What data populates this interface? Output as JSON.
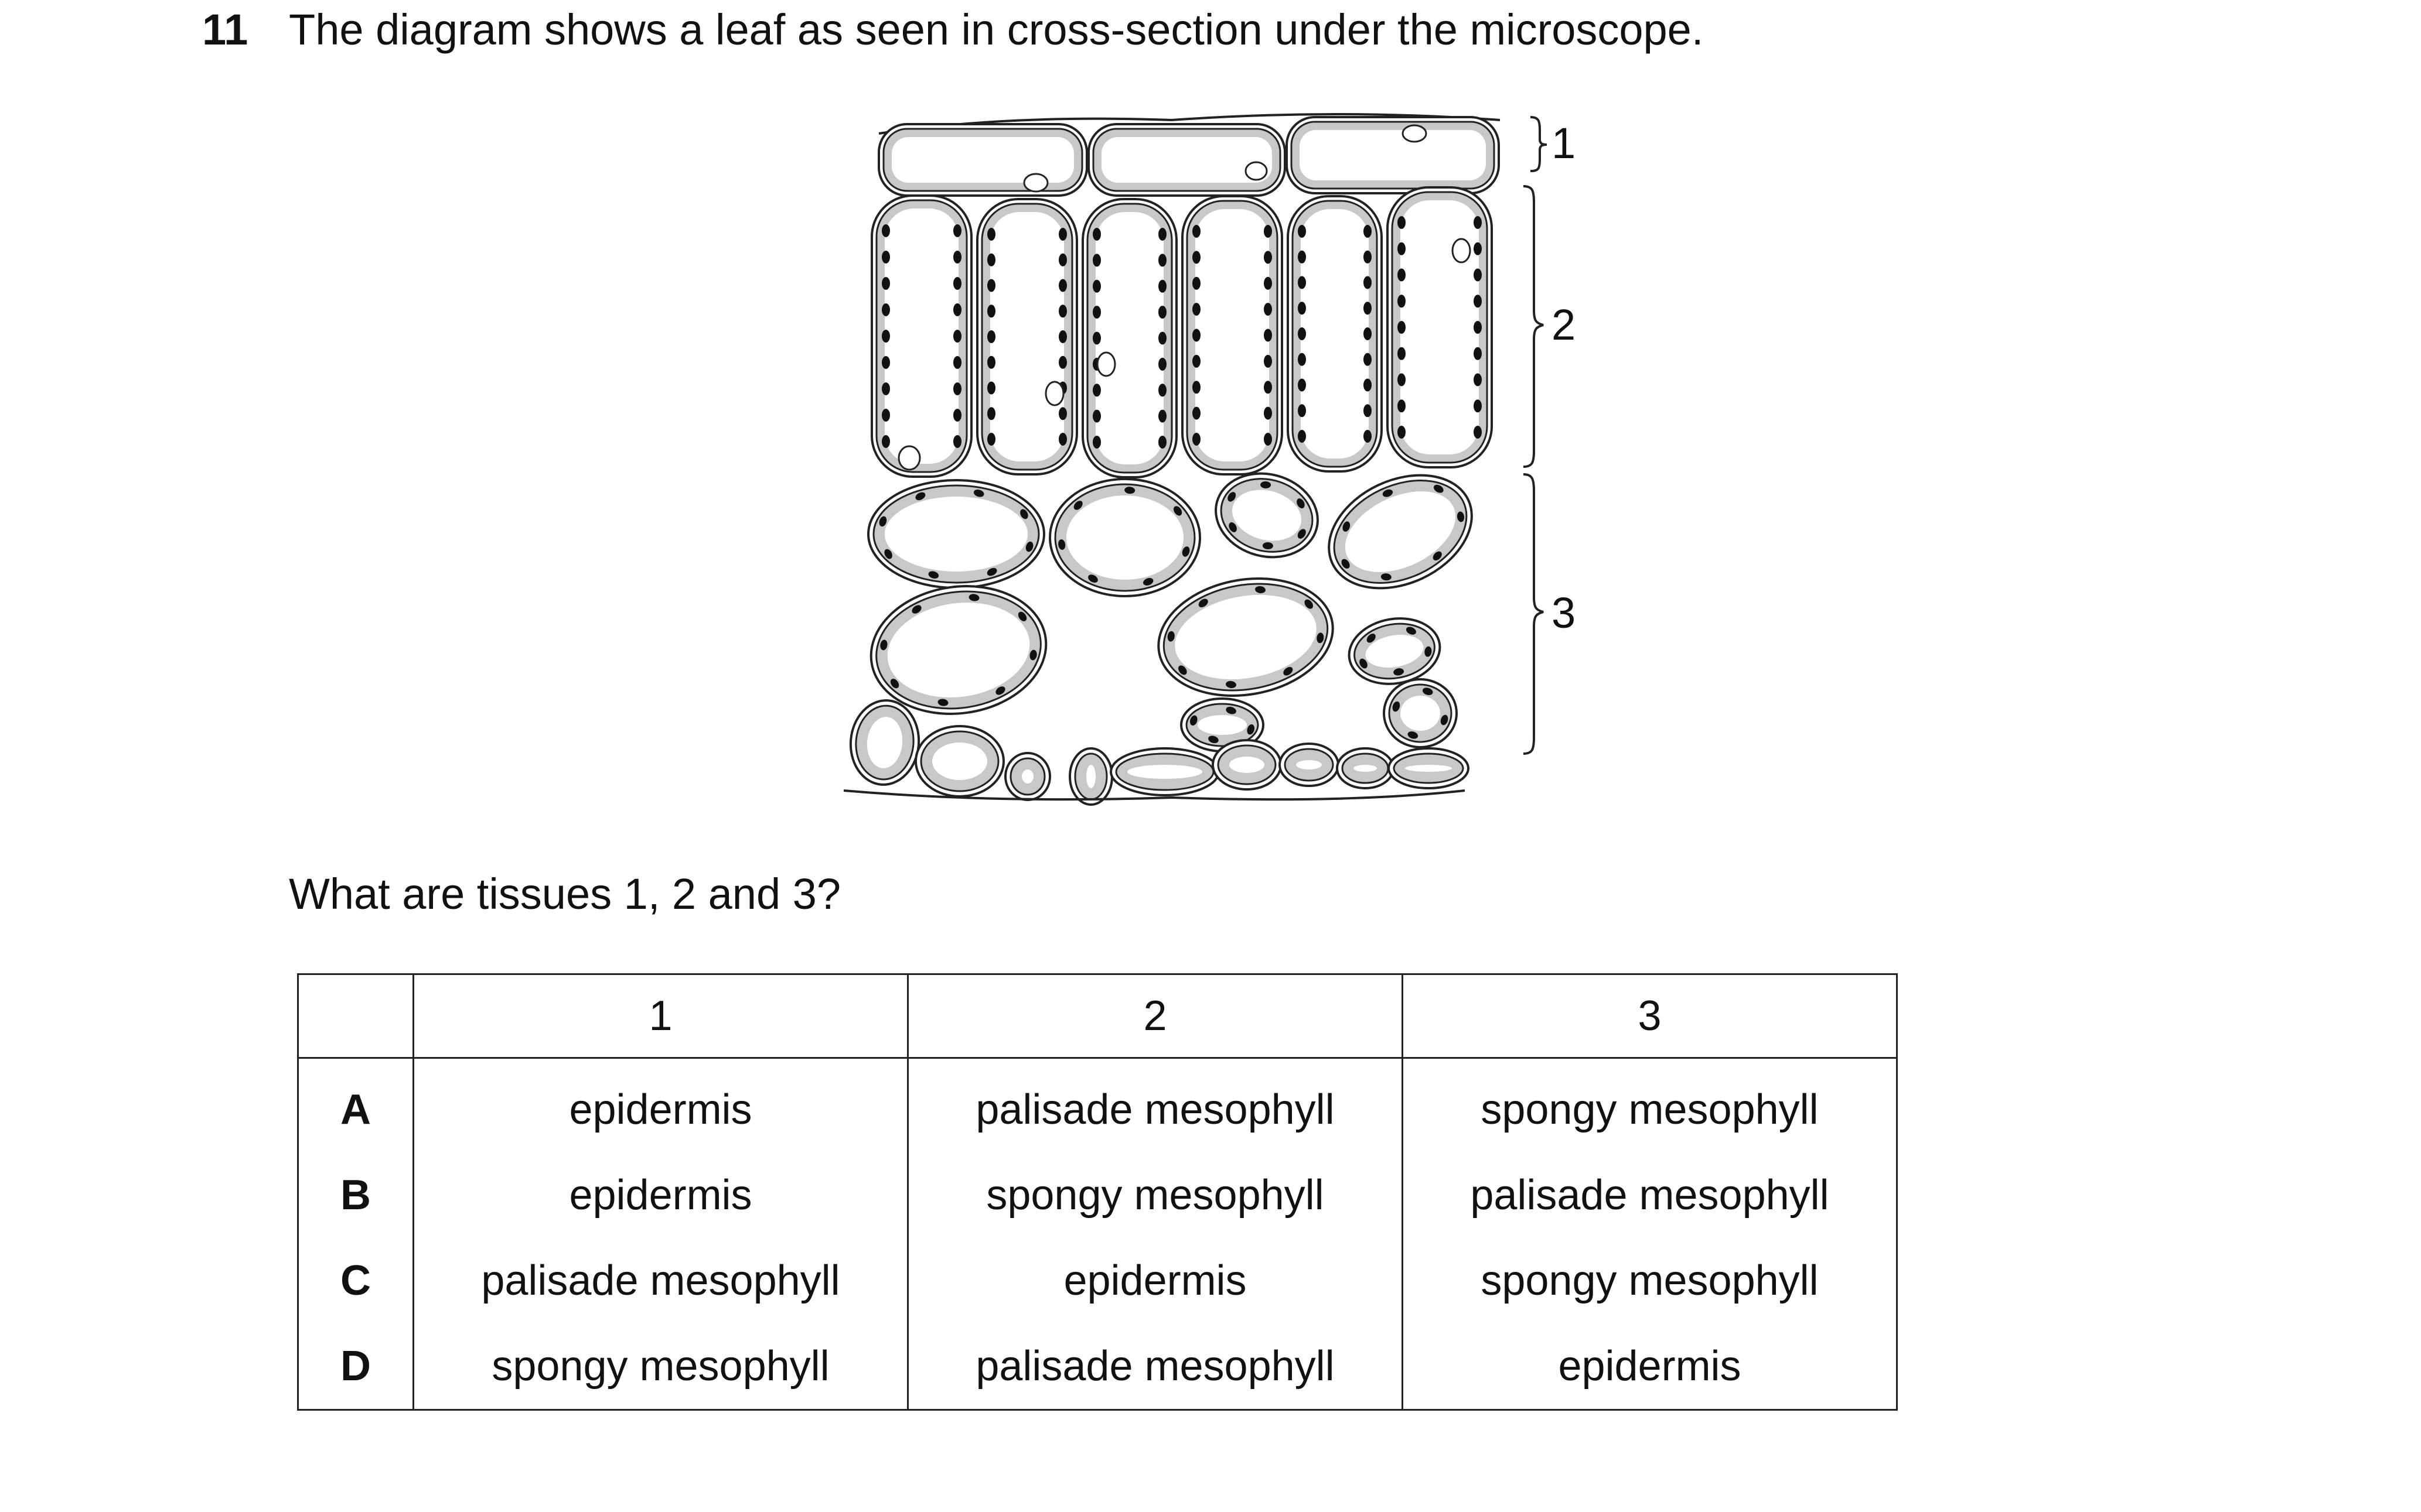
{
  "question": {
    "number": "11",
    "text": "The diagram shows a leaf as seen in cross-section under the microscope.",
    "prompt": "What are tissues 1, 2 and 3?"
  },
  "diagram": {
    "labels": [
      "1",
      "2",
      "3"
    ]
  },
  "table": {
    "headers": [
      "",
      "1",
      "2",
      "3"
    ],
    "rows": [
      {
        "option": "A",
        "cells": [
          "epidermis",
          "palisade mesophyll",
          "spongy mesophyll"
        ]
      },
      {
        "option": "B",
        "cells": [
          "epidermis",
          "spongy mesophyll",
          "palisade mesophyll"
        ]
      },
      {
        "option": "C",
        "cells": [
          "palisade mesophyll",
          "epidermis",
          "spongy mesophyll"
        ]
      },
      {
        "option": "D",
        "cells": [
          "spongy mesophyll",
          "palisade mesophyll",
          "epidermis"
        ]
      }
    ]
  },
  "colors": {
    "cytoplasm": "#c8c8c8",
    "outline": "#222222",
    "chloroplast": "#111111"
  }
}
